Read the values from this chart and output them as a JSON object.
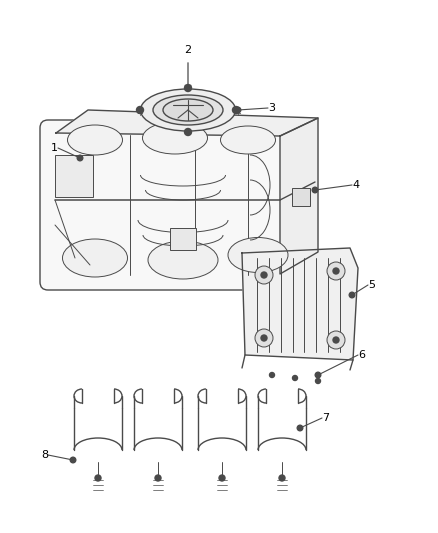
{
  "background_color": "#ffffff",
  "line_color": "#4a4a4a",
  "label_color": "#000000",
  "figure_width": 4.38,
  "figure_height": 5.33,
  "dpi": 100
}
